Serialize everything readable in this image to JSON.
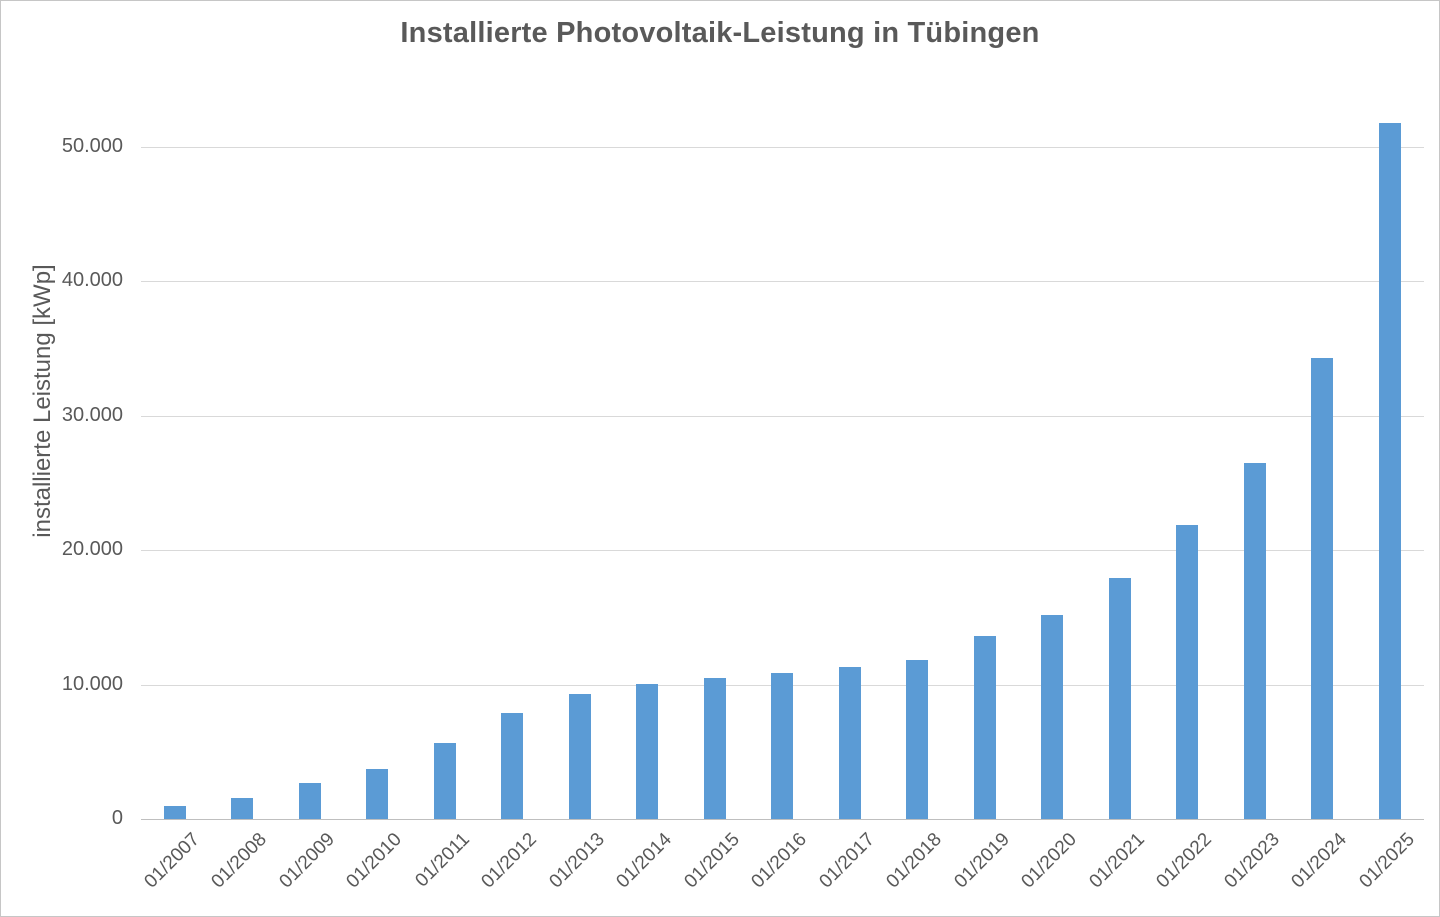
{
  "chart_data": {
    "type": "bar",
    "title": "Installierte Photovoltaik-Leistung in Tübingen",
    "xlabel": "",
    "ylabel": "installierte Leistung [kWp]",
    "categories": [
      "01/2007",
      "01/2008",
      "01/2009",
      "01/2010",
      "01/2011",
      "01/2012",
      "01/2013",
      "01/2014",
      "01/2015",
      "01/2016",
      "01/2017",
      "01/2018",
      "01/2019",
      "01/2020",
      "01/2021",
      "01/2022",
      "01/2023",
      "01/2024",
      "01/2025"
    ],
    "values": [
      1000,
      1550,
      2650,
      3700,
      5650,
      7900,
      9300,
      10050,
      10500,
      10900,
      11300,
      11800,
      13600,
      15200,
      17900,
      21900,
      26500,
      34300,
      51800
    ],
    "y_ticks": [
      {
        "value": 0,
        "label": "0"
      },
      {
        "value": 10000,
        "label": "10.000"
      },
      {
        "value": 20000,
        "label": "20.000"
      },
      {
        "value": 30000,
        "label": "30.000"
      },
      {
        "value": 40000,
        "label": "40.000"
      },
      {
        "value": 50000,
        "label": "50.000"
      }
    ],
    "ylim": [
      0,
      54000
    ],
    "grid": "horizontal",
    "legend": "none",
    "colors": {
      "bar": "#5b9bd5",
      "text": "#595959",
      "gridline": "#d9d9d9",
      "axis_line": "#bfbfbf",
      "frame_border": "#c6c6c6",
      "background": "#ffffff"
    }
  }
}
